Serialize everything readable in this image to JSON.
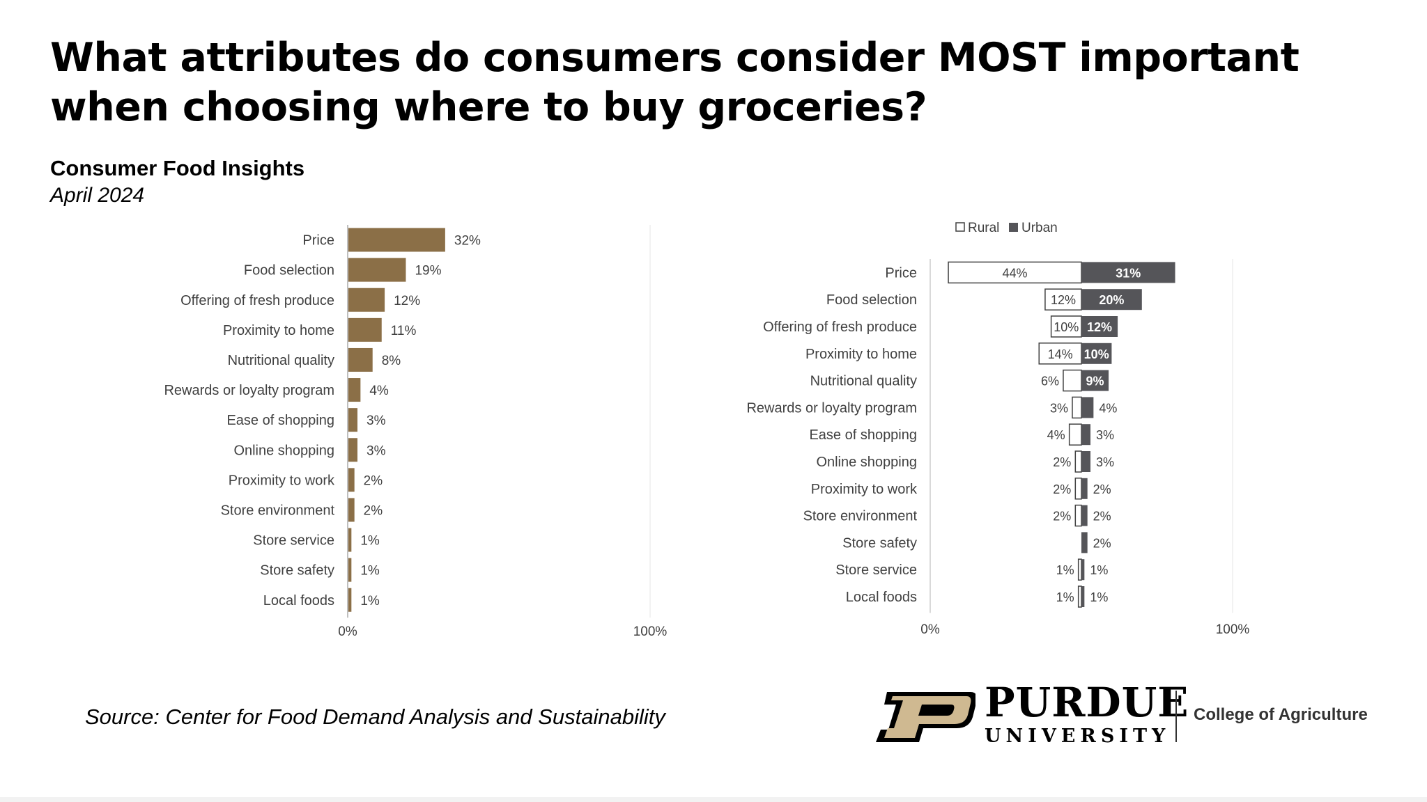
{
  "title": "What attributes do consumers consider MOST important when choosing where to buy groceries?",
  "subtitle": "Consumer Food Insights",
  "date": "April 2024",
  "source": "Source:  Center for Food Demand Analysis and Sustainability",
  "logo": {
    "name": "PURDUE",
    "sub": "UNIVERSITY",
    "college": "College of Agriculture",
    "letter": "P"
  },
  "colors": {
    "gold": "#8b6f47",
    "subtitle_gold": "#8e6f3e",
    "urban": "#555559",
    "grid": "#e6e6e6",
    "logo_gold": "#cfb991"
  },
  "chart_data": [
    {
      "type": "bar",
      "orientation": "horizontal",
      "categories": [
        "Price",
        "Food selection",
        "Offering of fresh produce",
        "Proximity to home",
        "Nutritional quality",
        "Rewards or loyalty program",
        "Ease of shopping",
        "Online shopping",
        "Proximity to work",
        "Store environment",
        "Store service",
        "Store safety",
        "Local foods"
      ],
      "values": [
        32,
        19,
        12,
        11,
        8,
        4,
        3,
        3,
        2,
        2,
        1,
        1,
        1
      ],
      "labels": [
        "32%",
        "19%",
        "12%",
        "11%",
        "8%",
        "4%",
        "3%",
        "3%",
        "2%",
        "2%",
        "1%",
        "1%",
        "1%"
      ],
      "xlim": [
        0,
        100
      ],
      "xticks": [
        "0%",
        "100%"
      ],
      "title": "",
      "xlabel": "",
      "ylabel": ""
    },
    {
      "type": "bar",
      "orientation": "horizontal",
      "stacked": true,
      "legend": [
        "Rural",
        "Urban"
      ],
      "legend_position": "top",
      "categories": [
        "Price",
        "Food selection",
        "Offering of fresh produce",
        "Proximity to home",
        "Nutritional quality",
        "Rewards or loyalty program",
        "Ease of shopping",
        "Online shopping",
        "Proximity to work",
        "Store environment",
        "Store safety",
        "Store service",
        "Local foods"
      ],
      "series": [
        {
          "name": "Rural",
          "values": [
            44,
            12,
            10,
            14,
            6,
            3,
            4,
            2,
            2,
            2,
            0,
            1,
            1
          ],
          "labels": [
            "44%",
            "12%",
            "10%",
            "14%",
            "6%",
            "3%",
            "4%",
            "2%",
            "2%",
            "2%",
            "",
            "1%",
            "1%"
          ]
        },
        {
          "name": "Urban",
          "values": [
            31,
            20,
            12,
            10,
            9,
            4,
            3,
            3,
            2,
            2,
            2,
            1,
            1
          ],
          "labels": [
            "31%",
            "20%",
            "12%",
            "10%",
            "9%",
            "4%",
            "3%",
            "3%",
            "2%",
            "2%",
            "2%",
            "1%",
            "1%"
          ]
        }
      ],
      "xlim": [
        0,
        100
      ],
      "xticks": [
        "0%",
        "100%"
      ],
      "title": "",
      "xlabel": "",
      "ylabel": ""
    }
  ]
}
